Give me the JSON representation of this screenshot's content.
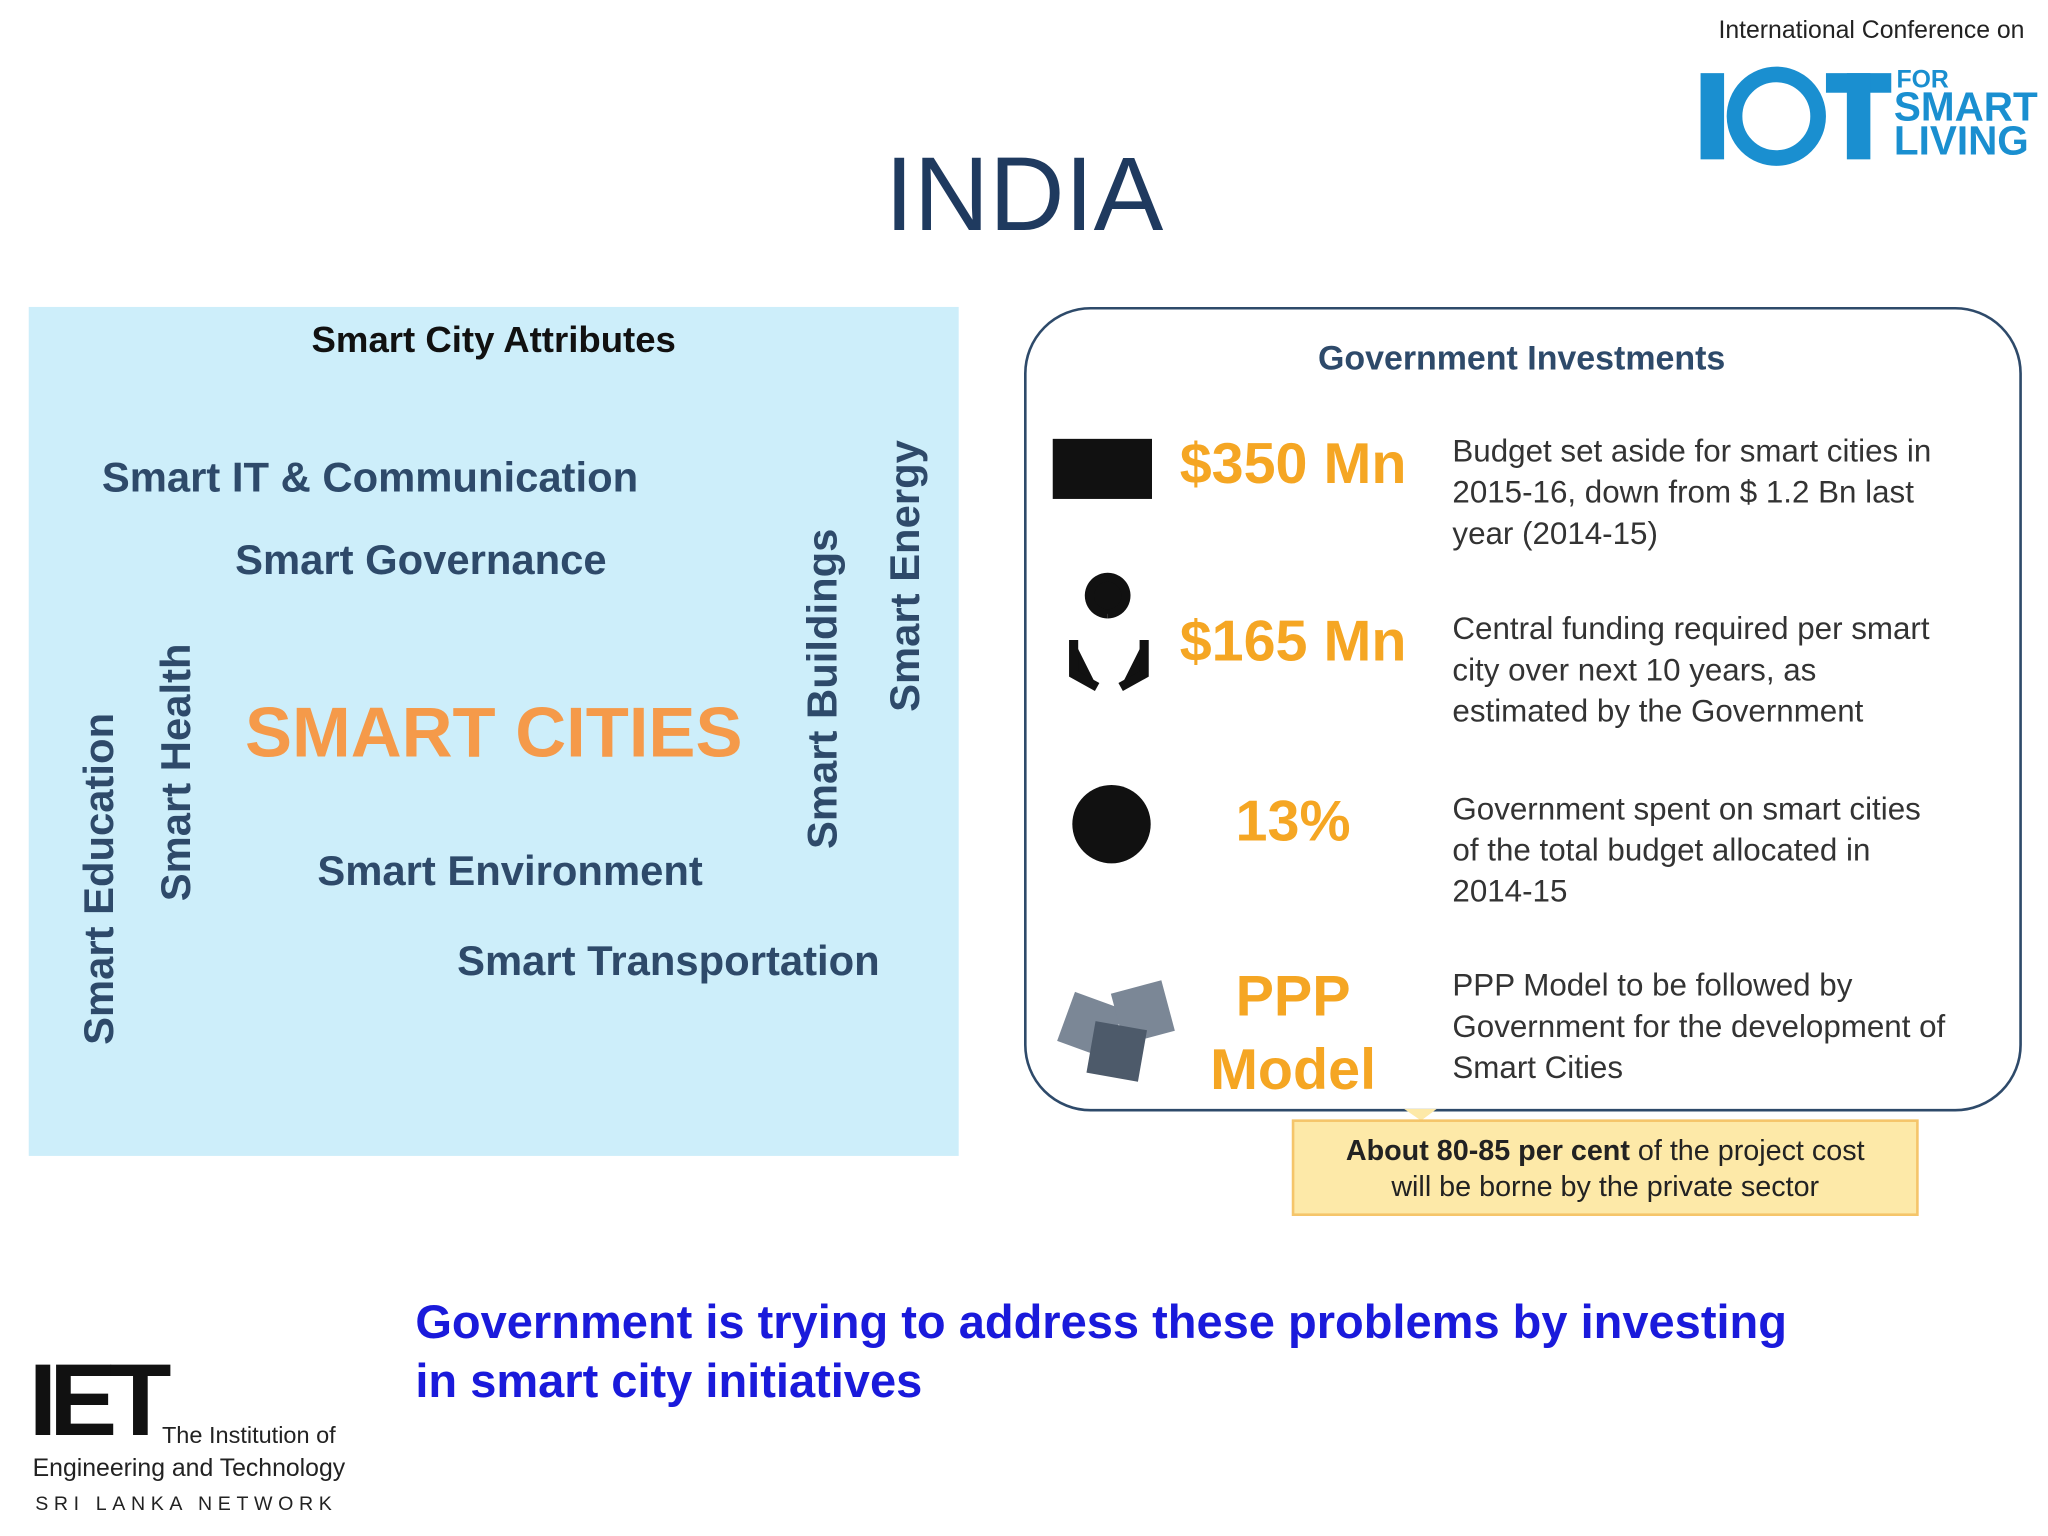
{
  "header": {
    "conference": "International Conference on",
    "logo": [
      "FOR",
      "SMART",
      "LIVING"
    ]
  },
  "title": "INDIA",
  "attributes": {
    "heading": "Smart City Attributes",
    "center": "SMART CITIES",
    "horizontal": [
      "Smart IT & Communication",
      "Smart Governance",
      "Smart Environment",
      "Smart Transportation"
    ],
    "vertical": [
      "Smart Education",
      "Smart Health",
      "Smart Buildings",
      "Smart Energy"
    ]
  },
  "investments": {
    "heading": "Government Investments",
    "rows": [
      {
        "amount": [
          "$350 Mn"
        ],
        "description": [
          "Budget set aside for smart cities in",
          "2015-16, down from $ 1.2 Bn last",
          "year (2014-15)"
        ]
      },
      {
        "amount": [
          "$165 Mn"
        ],
        "description": [
          "Central funding required per smart",
          "city over next 10 years, as",
          "estimated by the Government"
        ]
      },
      {
        "amount": [
          "13%"
        ],
        "description": [
          "Government spent on smart cities",
          "of the total budget allocated in",
          "2014-15"
        ]
      },
      {
        "amount": [
          "PPP",
          "Model"
        ],
        "description": [
          "PPP Model  to be followed by",
          "Government for the development of",
          "Smart Cities"
        ]
      }
    ],
    "callout": {
      "bold": "About 80-85 per cent",
      "rest": " of the project cost",
      "line2": "will be borne by the private sector"
    }
  },
  "footer": {
    "lines": [
      "Government is trying to address these problems by investing",
      "in smart city initiatives"
    ],
    "logo": {
      "mark": "IET",
      "line1": "The Institution of",
      "line2": "Engineering and Technology",
      "line3": "SRI LANKA NETWORK"
    }
  }
}
